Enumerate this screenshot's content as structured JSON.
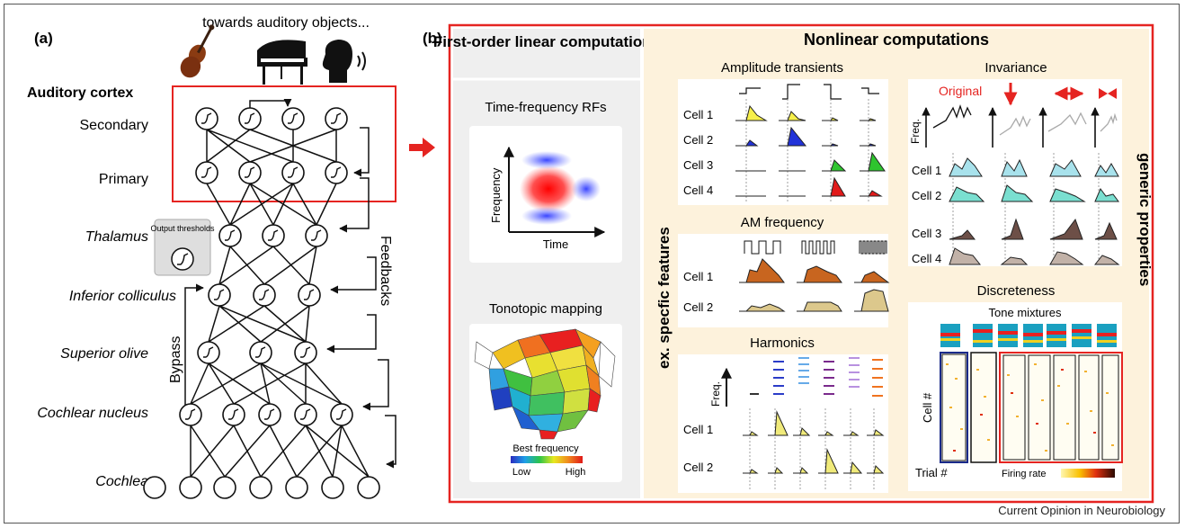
{
  "credit": "Current Opinion in Neurobiology",
  "panel_a": {
    "label": "(a)",
    "objects_heading": "towards auditory objects...",
    "object_icons": [
      "violin-icon",
      "piano-icon",
      "speaking-head-icon"
    ],
    "cortex_title": "Auditory cortex",
    "levels": [
      "Secondary",
      "Primary",
      "Thalamus",
      "Inferior colliculus",
      "Superior olive",
      "Cochlear nucleus",
      "Cochlea"
    ],
    "inset_label": "Output thresholds",
    "bypass_label": "Bypass",
    "feedback_label": "Feedbacks"
  },
  "panel_b": {
    "label": "(b)",
    "linear_title": "First-order linear computations",
    "rf_title": "Time-frequency RFs",
    "rf_ylabel": "Frequency",
    "rf_xlabel": "Time",
    "tono_title": "Tonotopic mapping",
    "tono_scale_label": "Best frequency",
    "tono_low": "Low",
    "tono_high": "High",
    "nonlinear_title": "Nonlinear computations",
    "left_vertical": "ex. specfic features",
    "right_vertical": "generic properties",
    "amp_title": "Amplitude transients",
    "am_title": "AM frequency",
    "harm_title": "Harmonics",
    "inv_title": "Invariance",
    "inv_original": "Original",
    "disc_title": "Discreteness",
    "disc_sub": "Tone mixtures",
    "freq_label": "Freq.",
    "cell_labels": [
      "Cell 1",
      "Cell 2",
      "Cell 3",
      "Cell 4"
    ],
    "cell_axis": "Cell #",
    "trial_axis": "Trial #",
    "firing_rate": "Firing rate"
  },
  "colors": {
    "highlight_red": "#e52421",
    "panel_tan": "#fdf2dc",
    "panel_grey": "#efefef",
    "cell_yellow": "#f6ef4a",
    "cell_blue": "#2233d8",
    "cell_green": "#2ec42e",
    "cell_red": "#e21a1a",
    "am_orange": "#c8651f",
    "am_tan": "#dcc88c",
    "inv_cyan": "#a8e2ec",
    "inv_brown": "#6d4f47",
    "inv_taupe": "#c2b2a8",
    "harm_palette": [
      "#333333",
      "#2b3cc8",
      "#66aae8",
      "#7a2a8c",
      "#b891e0",
      "#f0731f"
    ]
  }
}
